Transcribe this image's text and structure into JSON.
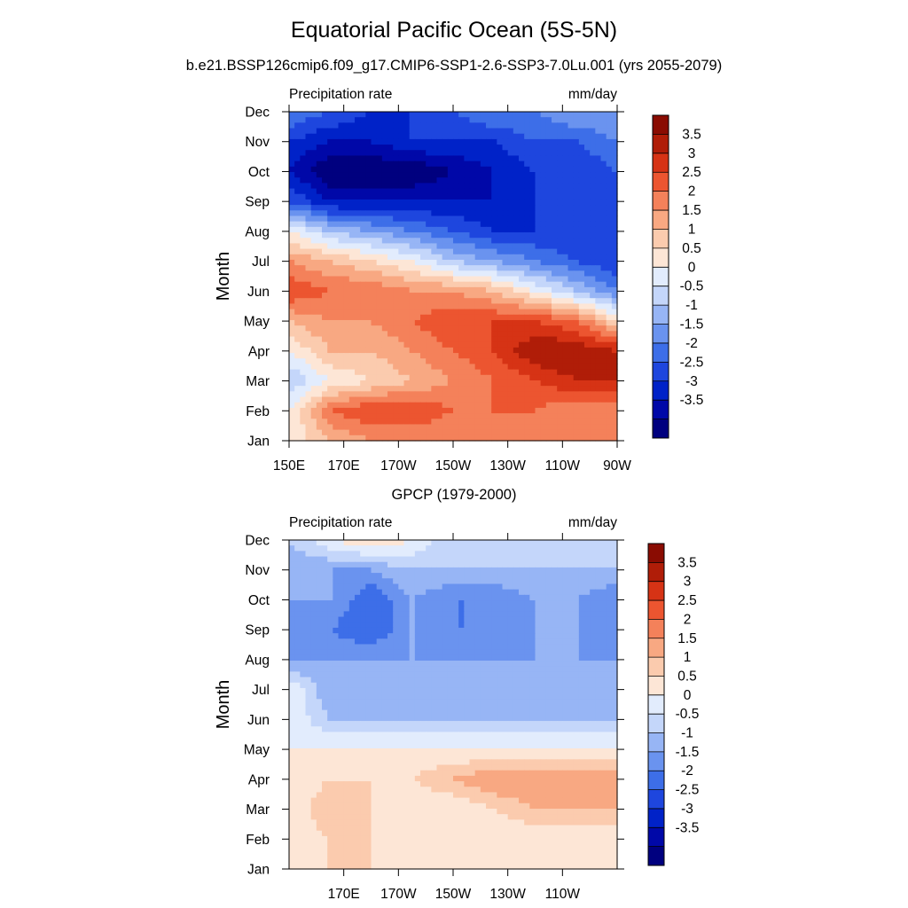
{
  "title": "Equatorial Pacific Ocean (5S-5N)",
  "subtitle": "b.e21.BSSP126cmip6.f09_g17.CMIP6-SSP1-2.6-SSP3-7.0Lu.001 (yrs 2055-2079)",
  "colors": [
    "#00007f",
    "#0008a8",
    "#0022c8",
    "#1e46de",
    "#3d6ee8",
    "#6a93ef",
    "#97b5f5",
    "#c4d6fa",
    "#e2ecfd",
    "#fde6d6",
    "#fbcbae",
    "#f8a882",
    "#f4815a",
    "#ec5530",
    "#d63315",
    "#b01d08",
    "#8a0c02"
  ],
  "chart_data": [
    {
      "type": "heatmap",
      "panel_title": "",
      "left_label": "Precipitation rate",
      "right_label": "mm/day",
      "ylabel": "Month",
      "yticks": [
        "Jan",
        "Feb",
        "Mar",
        "Apr",
        "May",
        "Jun",
        "Jul",
        "Aug",
        "Sep",
        "Oct",
        "Nov",
        "Dec"
      ],
      "xticks": [
        "150E",
        "170E",
        "170W",
        "150W",
        "130W",
        "110W",
        "90W"
      ],
      "xlim": [
        150,
        270
      ],
      "colorbar_labels": [
        "3.5",
        "3",
        "2.5",
        "2",
        "1.5",
        "1",
        "0.5",
        "0",
        "-0.5",
        "-1",
        "-1.5",
        "-2",
        "-2.5",
        "-3",
        "-3.5"
      ],
      "x": [
        150,
        165,
        180,
        195,
        210,
        225,
        240,
        255,
        270
      ],
      "y": [
        1,
        2,
        3,
        4,
        5,
        6,
        7,
        8,
        9,
        10,
        11,
        12
      ],
      "z": [
        [
          0.5,
          1.5,
          2.0,
          2.0,
          2.0,
          2.0,
          2.0,
          2.0,
          2.0
        ],
        [
          0.5,
          2.5,
          3.0,
          3.0,
          2.5,
          2.5,
          2.5,
          2.0,
          2.0
        ],
        [
          -0.5,
          0.5,
          1.0,
          1.5,
          2.0,
          2.5,
          3.0,
          3.5,
          3.5
        ],
        [
          0.5,
          1.5,
          1.5,
          2.0,
          2.5,
          3.0,
          4.0,
          4.0,
          3.5
        ],
        [
          1.5,
          2.0,
          2.0,
          2.5,
          3.0,
          3.0,
          3.0,
          2.5,
          1.0
        ],
        [
          3.0,
          2.5,
          2.5,
          2.0,
          2.0,
          1.5,
          0.5,
          -0.5,
          -1.5
        ],
        [
          2.0,
          1.5,
          1.0,
          0.5,
          -0.5,
          -1.0,
          -1.5,
          -2.0,
          -2.5
        ],
        [
          0.5,
          -0.5,
          -1.0,
          -1.5,
          -2.0,
          -2.5,
          -2.5,
          -2.5,
          -2.5
        ],
        [
          -2.0,
          -3.0,
          -3.0,
          -3.0,
          -3.0,
          -3.0,
          -2.5,
          -2.0,
          -2.0
        ],
        [
          -3.0,
          -4.0,
          -4.0,
          -4.0,
          -3.5,
          -3.0,
          -2.5,
          -2.5,
          -2.0
        ],
        [
          -2.5,
          -3.0,
          -3.0,
          -2.5,
          -2.5,
          -2.5,
          -2.0,
          -2.0,
          -1.5
        ],
        [
          -1.5,
          -2.0,
          -2.5,
          -2.5,
          -2.0,
          -1.5,
          -1.5,
          -1.0,
          -1.0
        ]
      ]
    },
    {
      "type": "heatmap",
      "panel_title": "GPCP (1979-2000)",
      "left_label": "Precipitation rate",
      "right_label": "mm/day",
      "ylabel": "Month",
      "yticks": [
        "Jan",
        "Feb",
        "Mar",
        "Apr",
        "May",
        "Jun",
        "Jul",
        "Aug",
        "Sep",
        "Oct",
        "Nov",
        "Dec"
      ],
      "xticks": [
        "170E",
        "170W",
        "150W",
        "130W",
        "110W"
      ],
      "xlim": [
        150,
        270
      ],
      "colorbar_labels": [
        "3.5",
        "3",
        "2.5",
        "2",
        "1.5",
        "1",
        "0.5",
        "0",
        "-0.5",
        "-1",
        "-1.5",
        "-2",
        "-2.5",
        "-3",
        "-3.5"
      ],
      "x": [
        150,
        165,
        180,
        195,
        210,
        225,
        240,
        255,
        270
      ],
      "y": [
        1,
        2,
        3,
        4,
        5,
        6,
        7,
        8,
        9,
        10,
        11,
        12
      ],
      "z": [
        [
          0.5,
          1.0,
          1.0,
          0.5,
          0.5,
          0.5,
          0.5,
          0.5,
          0.5
        ],
        [
          0.5,
          1.0,
          1.0,
          0.5,
          0.5,
          0.5,
          0.5,
          0.5,
          0.5
        ],
        [
          0.5,
          1.5,
          1.0,
          0.5,
          0.5,
          1.0,
          1.5,
          1.5,
          1.5
        ],
        [
          0.5,
          1.0,
          1.0,
          1.0,
          1.5,
          2.0,
          2.0,
          2.0,
          2.0
        ],
        [
          0.5,
          0.5,
          0.5,
          0.5,
          0.5,
          0.5,
          0.5,
          0.5,
          0.5
        ],
        [
          0.5,
          -0.5,
          -0.5,
          -0.5,
          -0.5,
          -0.5,
          -0.5,
          -0.5,
          -0.5
        ],
        [
          0.5,
          -1.0,
          -1.0,
          -1.0,
          -1.0,
          -1.0,
          -1.0,
          -1.0,
          -1.0
        ],
        [
          -1.0,
          -1.0,
          -1.0,
          -1.0,
          -1.0,
          -1.0,
          -1.0,
          -1.0,
          -1.0
        ],
        [
          -1.5,
          -1.5,
          -2.0,
          -1.0,
          -1.5,
          -1.5,
          -1.0,
          -1.0,
          -1.5
        ],
        [
          -1.0,
          -1.0,
          -2.0,
          -1.0,
          -1.5,
          -1.5,
          -1.0,
          -1.0,
          -1.5
        ],
        [
          -1.0,
          -1.0,
          -1.0,
          -0.5,
          -0.5,
          -0.5,
          -0.5,
          -0.5,
          -0.5
        ],
        [
          -0.5,
          0.5,
          1.0,
          0.5,
          -0.5,
          -0.5,
          -0.5,
          -0.5,
          -0.5
        ]
      ]
    }
  ]
}
